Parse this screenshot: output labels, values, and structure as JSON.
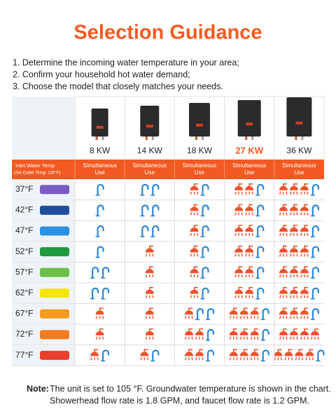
{
  "title": "Selection Guidance",
  "instructions": [
    "1. Determine the incoming water temperature in your area;",
    "2. Confirm your household hot water demand;",
    "3. Choose the model that closely matches your needs."
  ],
  "columns": [
    {
      "label": "8 KW"
    },
    {
      "label": "14 KW"
    },
    {
      "label": "18 KW"
    },
    {
      "label": "27 KW",
      "highlight": true
    },
    {
      "label": "36 KW"
    }
  ],
  "header": {
    "temp_label": [
      "Inlet Water Temp",
      "(Set Outlet Temp: 105°F)"
    ],
    "use_label": [
      "Simultaneous",
      "Use"
    ]
  },
  "icon_colors": {
    "shower": "#f0502a",
    "faucet": "#2b86d6"
  },
  "rows": [
    {
      "temp": "37°F",
      "color": "#7b5cc4",
      "cells": [
        {
          "showers": 0,
          "faucets": 1
        },
        {
          "showers": 0,
          "faucets": 2
        },
        {
          "showers": 1,
          "faucets": 1
        },
        {
          "showers": 2,
          "faucets": 1
        },
        {
          "showers": 3,
          "faucets": 1
        }
      ]
    },
    {
      "temp": "42°F",
      "color": "#1f4f9a",
      "cells": [
        {
          "showers": 0,
          "faucets": 1
        },
        {
          "showers": 0,
          "faucets": 2
        },
        {
          "showers": 1,
          "faucets": 1
        },
        {
          "showers": 2,
          "faucets": 1
        },
        {
          "showers": 3,
          "faucets": 1
        }
      ]
    },
    {
      "temp": "47°F",
      "color": "#2a90e0",
      "cells": [
        {
          "showers": 0,
          "faucets": 1
        },
        {
          "showers": 0,
          "faucets": 2
        },
        {
          "showers": 1,
          "faucets": 1
        },
        {
          "showers": 2,
          "faucets": 1
        },
        {
          "showers": 3,
          "faucets": 1
        }
      ]
    },
    {
      "temp": "52°F",
      "color": "#1f9a3e",
      "cells": [
        {
          "showers": 0,
          "faucets": 1
        },
        {
          "showers": 1,
          "faucets": 0
        },
        {
          "showers": 1,
          "faucets": 1
        },
        {
          "showers": 2,
          "faucets": 1
        },
        {
          "showers": 3,
          "faucets": 1
        }
      ]
    },
    {
      "temp": "57°F",
      "color": "#6cc04a",
      "cells": [
        {
          "showers": 0,
          "faucets": 2
        },
        {
          "showers": 1,
          "faucets": 0
        },
        {
          "showers": 1,
          "faucets": 1
        },
        {
          "showers": 2,
          "faucets": 1
        },
        {
          "showers": 3,
          "faucets": 1
        }
      ]
    },
    {
      "temp": "62°F",
      "color": "#f2e600",
      "cells": [
        {
          "showers": 0,
          "faucets": 2
        },
        {
          "showers": 1,
          "faucets": 0
        },
        {
          "showers": 1,
          "faucets": 1
        },
        {
          "showers": 2,
          "faucets": 1
        },
        {
          "showers": 3,
          "faucets": 1
        }
      ]
    },
    {
      "temp": "67°F",
      "color": "#f59a22",
      "cells": [
        {
          "showers": 1,
          "faucets": 0
        },
        {
          "showers": 1,
          "faucets": 0
        },
        {
          "showers": 1,
          "faucets": 2
        },
        {
          "showers": 3,
          "faucets": 1
        },
        {
          "showers": 3,
          "faucets": 1
        }
      ]
    },
    {
      "temp": "72°F",
      "color": "#f57a1e",
      "cells": [
        {
          "showers": 1,
          "faucets": 0
        },
        {
          "showers": 1,
          "faucets": 0
        },
        {
          "showers": 2,
          "faucets": 1
        },
        {
          "showers": 3,
          "faucets": 1
        },
        {
          "showers": 4,
          "faucets": 0
        }
      ]
    },
    {
      "temp": "77°F",
      "color": "#e8402a",
      "cells": [
        {
          "showers": 1,
          "faucets": 1
        },
        {
          "showers": 1,
          "faucets": 1
        },
        {
          "showers": 2,
          "faucets": 1
        },
        {
          "showers": 3,
          "faucets": 1
        },
        {
          "showers": 4,
          "faucets": 1
        }
      ]
    }
  ],
  "note": {
    "label": "Note:",
    "lines": [
      "The unit is set to 105 °F. Groundwater temperature is shown in the chart.",
      "Showerhead flow rate is 1.8 GPM, and faucet flow rate is 1.2 GPM."
    ]
  }
}
